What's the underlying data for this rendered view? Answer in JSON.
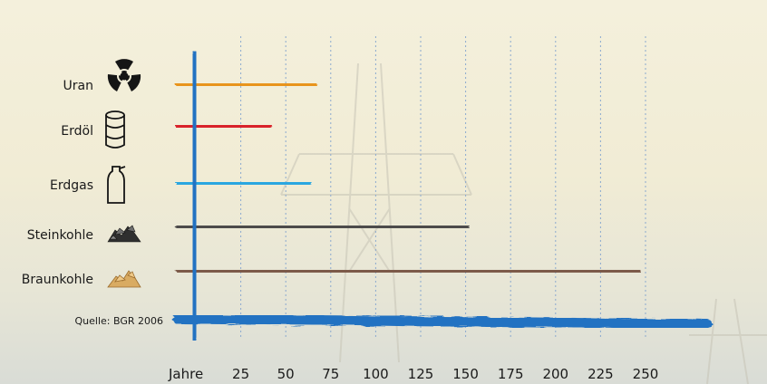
{
  "chart_data": {
    "type": "bar",
    "orientation": "horizontal",
    "categories": [
      "Uran",
      "Erdöl",
      "Erdgas",
      "Steinkohle",
      "Braunkohle"
    ],
    "values": [
      65,
      40,
      62,
      150,
      245
    ],
    "xlabel": "Jahre",
    "x_ticks": [
      25,
      50,
      75,
      100,
      125,
      150,
      175,
      200,
      225,
      250
    ],
    "xlim": [
      0,
      275
    ],
    "grid": true,
    "grid_lines": "vertical",
    "source": "Quelle: BGR 2006",
    "icons": [
      "radiation-icon",
      "oil-barrel-icon",
      "gas-bottle-icon",
      "hard-coal-icon",
      "lignite-icon"
    ],
    "colors": [
      "#e8941e",
      "#d9242a",
      "#2aa6e0",
      "#4e4b4b",
      "#7b5a4a"
    ],
    "axis_color": "#2472c2"
  }
}
